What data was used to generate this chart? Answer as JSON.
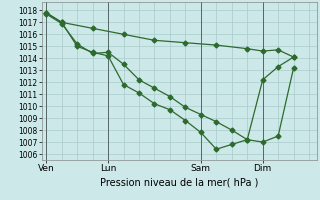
{
  "xlabel": "Pression niveau de la mer( hPa )",
  "bg_color": "#cce8e8",
  "grid_color": "#aacccc",
  "line_color": "#2d6a2d",
  "marker": "D",
  "marker_size": 2.5,
  "ylim": [
    1005.5,
    1018.7
  ],
  "yticks": [
    1006,
    1007,
    1008,
    1009,
    1010,
    1011,
    1012,
    1013,
    1014,
    1015,
    1016,
    1017,
    1018
  ],
  "day_labels": [
    "Ven",
    "Lun",
    "Sam",
    "Dim"
  ],
  "day_positions": [
    0,
    4,
    10,
    14
  ],
  "xlim": [
    -0.3,
    17.5
  ],
  "line1_x": [
    0,
    1,
    2,
    3,
    4,
    5,
    6,
    7,
    8,
    9,
    10,
    11,
    12,
    13,
    14,
    15,
    16
  ],
  "line1_y": [
    1017.7,
    1016.9,
    1015.2,
    1014.4,
    1014.5,
    1013.5,
    1012.2,
    1011.5,
    1010.8,
    1009.9,
    1009.3,
    1008.7,
    1008.0,
    1007.2,
    1007.0,
    1007.5,
    1013.2
  ],
  "line2_x": [
    0,
    1,
    2,
    3,
    4,
    5,
    6,
    7,
    8,
    9,
    10,
    11,
    12,
    13,
    14,
    15,
    16
  ],
  "line2_y": [
    1017.8,
    1017.0,
    1015.0,
    1014.5,
    1014.2,
    1011.8,
    1011.1,
    1010.2,
    1009.7,
    1008.8,
    1007.8,
    1006.4,
    1006.8,
    1007.2,
    1012.2,
    1013.3,
    1014.1
  ],
  "line3_x": [
    0,
    1,
    3,
    5,
    7,
    9,
    11,
    13,
    14,
    15,
    16
  ],
  "line3_y": [
    1017.8,
    1017.0,
    1016.5,
    1016.0,
    1015.5,
    1015.3,
    1015.1,
    1014.8,
    1014.6,
    1014.7,
    1014.1
  ],
  "vline_color": "#556666",
  "ylabel_fontsize": 5.5,
  "xlabel_fontsize": 7.0,
  "xtick_fontsize": 6.5
}
